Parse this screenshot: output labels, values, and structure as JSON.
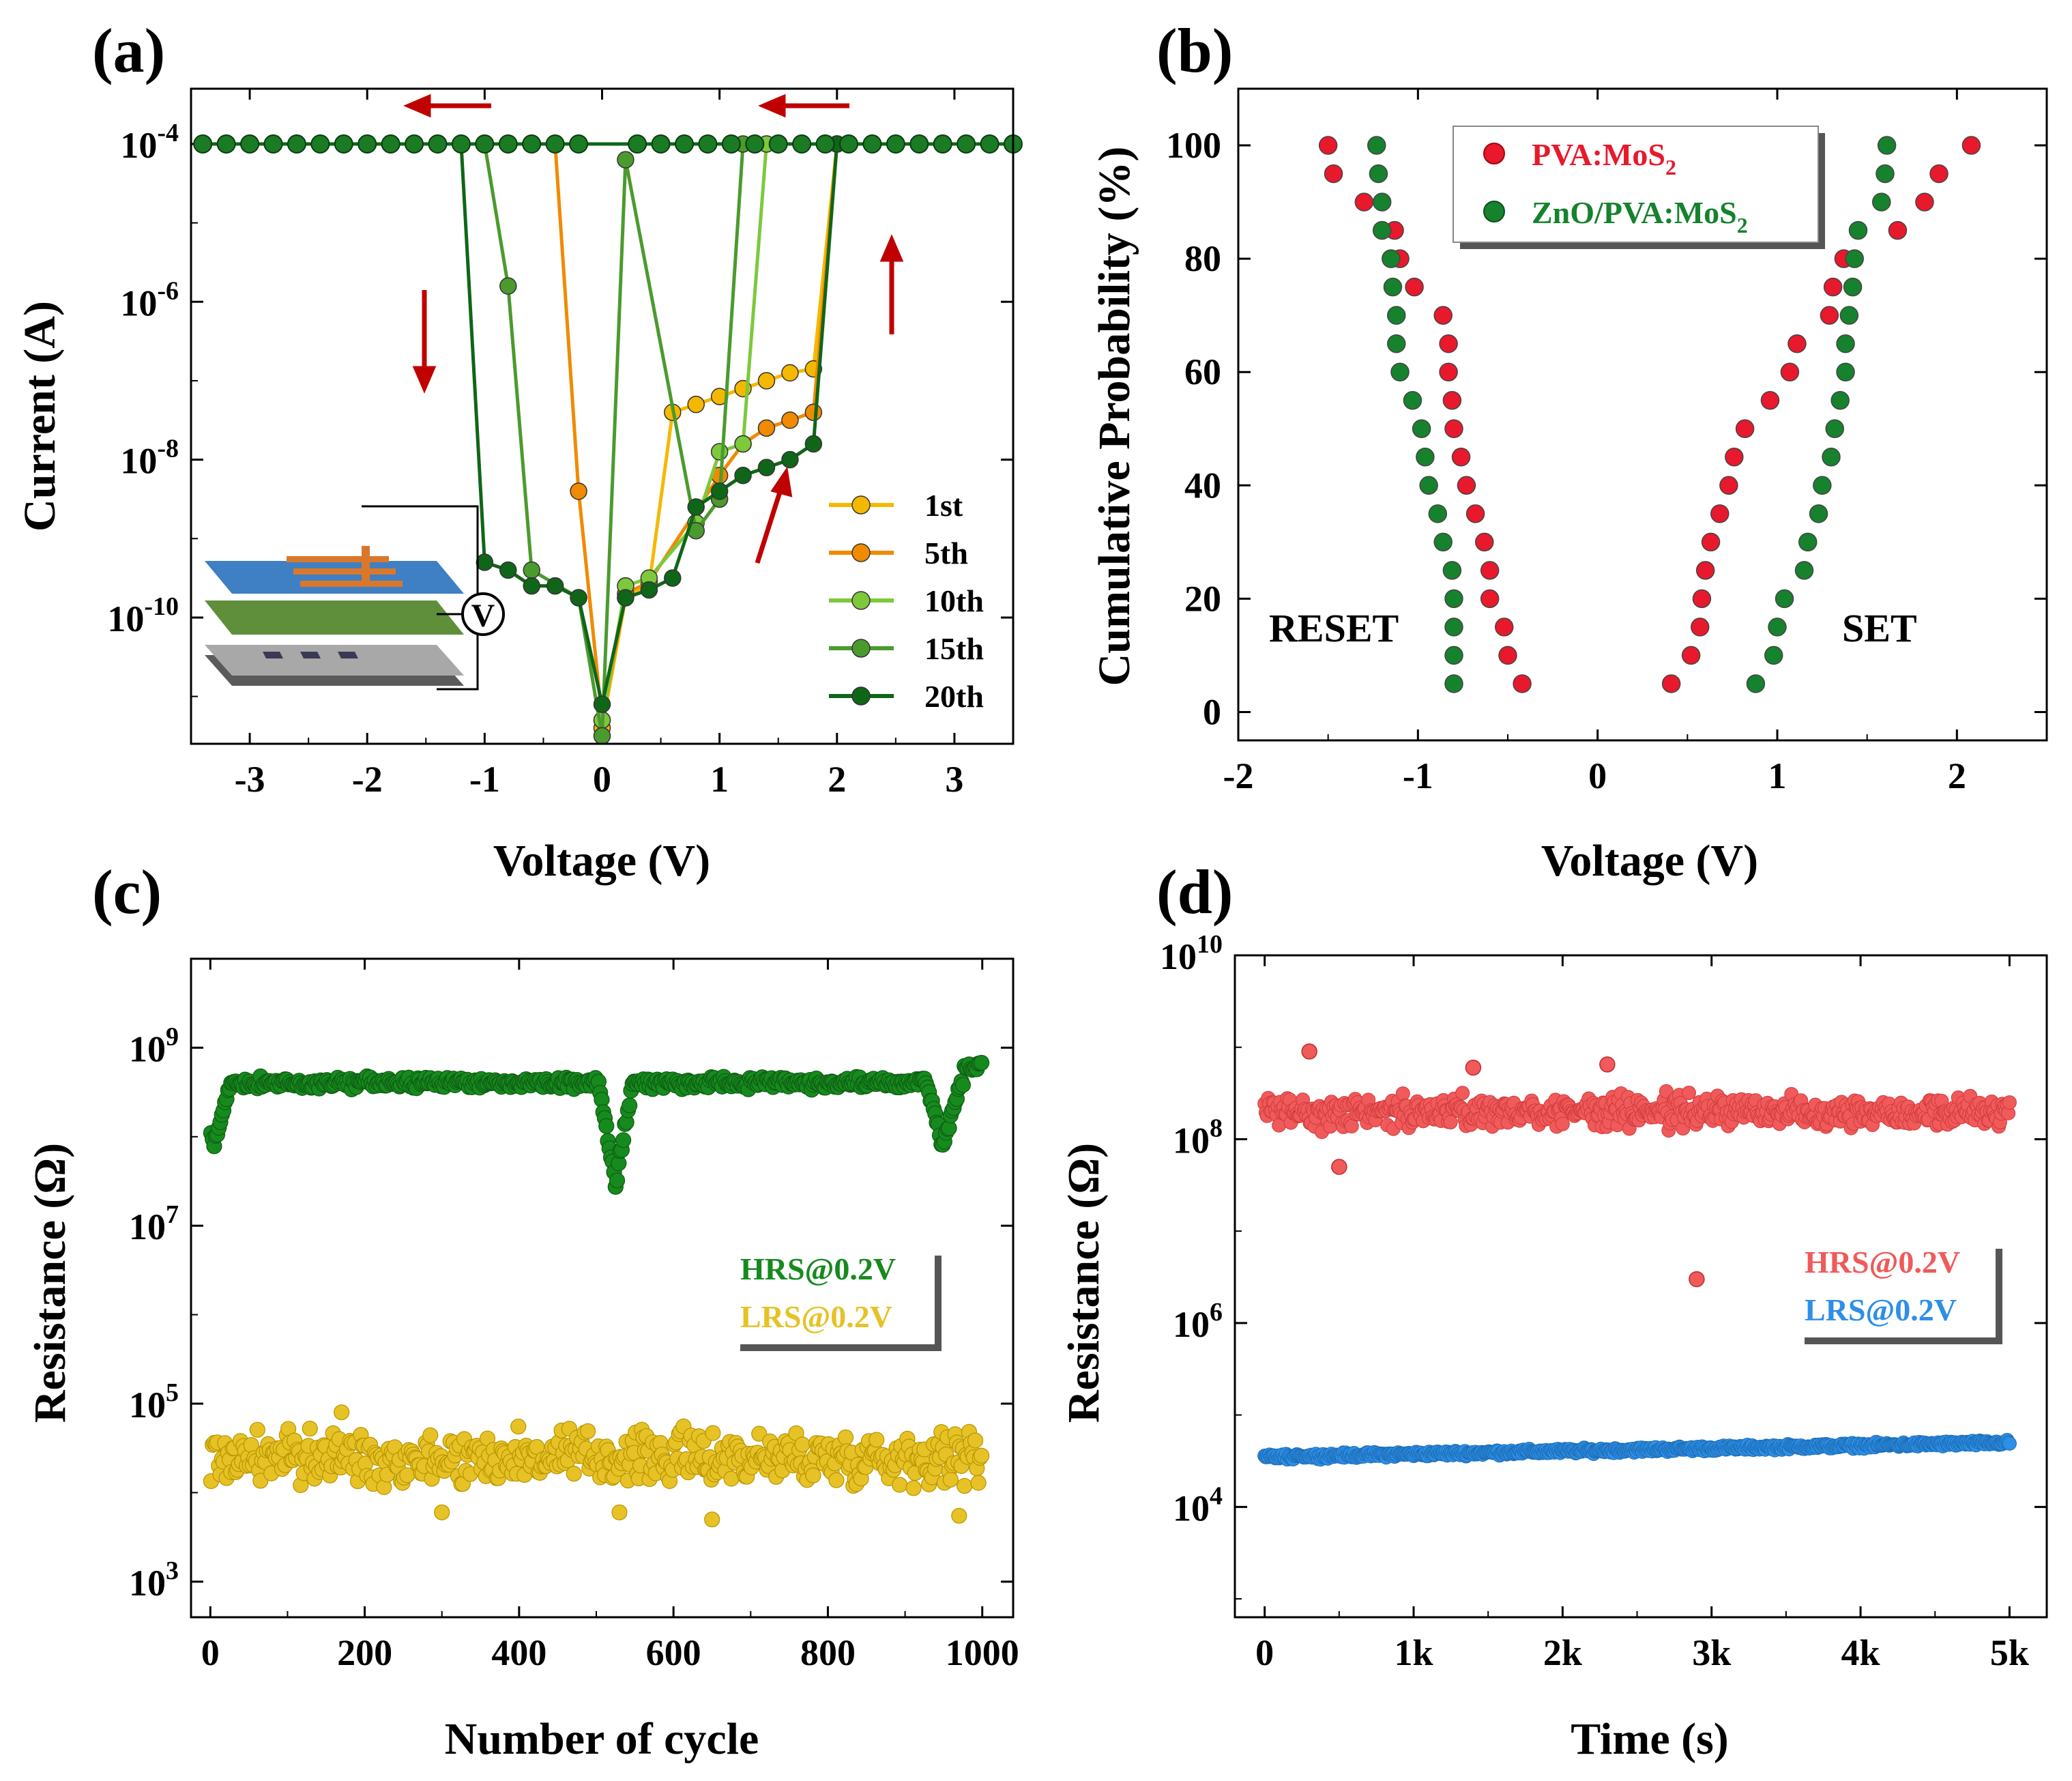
{
  "chart_data": [
    {
      "id": "a",
      "panel_label": "(a)",
      "type": "line",
      "xlabel": "Voltage (V)",
      "ylabel": "Current (A)",
      "xlim": [
        -3.5,
        3.5
      ],
      "ylim_exp": [
        -11.6,
        -3.3
      ],
      "yscale": "log",
      "xticks": [
        -3,
        -2,
        -1,
        0,
        1,
        2,
        3
      ],
      "xtick_labels": [
        "-3",
        "-2",
        "-1",
        "0",
        "1",
        "2",
        "3"
      ],
      "yticks_exp": [
        -10,
        -8,
        -6,
        -4
      ],
      "ytick_mantissa": "10",
      "ytick_exponents": [
        "-10",
        "-8",
        "-6",
        "-4"
      ],
      "legend": [
        "1st",
        "5th",
        "10th",
        "15th",
        "20th"
      ],
      "inset_meter_label": "V",
      "arrow_color": "#c00000",
      "series": [
        {
          "name": "1st",
          "color": "#f5b800",
          "points": [
            [
              0,
              -11.4
            ],
            [
              0.2,
              -9.75
            ],
            [
              0.4,
              -9.6
            ],
            [
              0.6,
              -7.4
            ],
            [
              0.8,
              -7.3
            ],
            [
              1.0,
              -7.2
            ],
            [
              1.2,
              -7.1
            ],
            [
              1.4,
              -7.0
            ],
            [
              1.6,
              -6.9
            ],
            [
              1.8,
              -6.85
            ],
            [
              2.0,
              -4.0
            ]
          ]
        },
        {
          "name": "5th",
          "color": "#f08a00",
          "points": [
            [
              -0.4,
              -4.0
            ],
            [
              -0.2,
              -8.4
            ],
            [
              0,
              -11.3
            ],
            [
              0.2,
              -9.7
            ],
            [
              0.4,
              -9.55
            ],
            [
              1.0,
              -8.2
            ],
            [
              1.2,
              -7.8
            ],
            [
              1.4,
              -7.6
            ],
            [
              1.6,
              -7.5
            ],
            [
              1.8,
              -7.4
            ],
            [
              2.0,
              -4.0
            ]
          ]
        },
        {
          "name": "10th",
          "color": "#7ec83c",
          "points": [
            [
              0,
              -11.3
            ],
            [
              0.2,
              -9.6
            ],
            [
              0.4,
              -9.5
            ],
            [
              0.8,
              -8.8
            ],
            [
              1.0,
              -7.9
            ],
            [
              1.2,
              -7.8
            ],
            [
              1.4,
              -4.0
            ]
          ]
        },
        {
          "name": "15th",
          "color": "#4b9a2e",
          "points": [
            [
              -1.0,
              -4.0
            ],
            [
              -0.8,
              -5.8
            ],
            [
              -0.6,
              -9.4
            ],
            [
              -0.2,
              -9.75
            ],
            [
              0,
              -11.5
            ],
            [
              0.2,
              -4.2
            ],
            [
              0.8,
              -8.9
            ],
            [
              1.0,
              -8.5
            ],
            [
              1.2,
              -4.0
            ]
          ]
        },
        {
          "name": "20th",
          "color": "#0f6618",
          "points": [
            [
              -1.2,
              -4.0
            ],
            [
              -1.0,
              -9.3
            ],
            [
              -0.8,
              -9.4
            ],
            [
              -0.6,
              -9.6
            ],
            [
              -0.4,
              -9.6
            ],
            [
              -0.2,
              -9.75
            ],
            [
              0,
              -11.1
            ],
            [
              0.2,
              -9.75
            ],
            [
              0.4,
              -9.65
            ],
            [
              0.6,
              -9.5
            ],
            [
              0.8,
              -8.6
            ],
            [
              1.0,
              -8.4
            ],
            [
              1.2,
              -8.2
            ],
            [
              1.4,
              -8.1
            ],
            [
              1.6,
              -8.0
            ],
            [
              1.8,
              -7.8
            ],
            [
              2.0,
              -4.0
            ]
          ]
        }
      ],
      "hold_top": {
        "value_exp": -4.0,
        "x": [
          -3.4,
          -3.2,
          -3.0,
          -2.8,
          -2.6,
          -2.4,
          -2.2,
          -2.0,
          -1.8,
          -1.6,
          -1.4,
          -1.2,
          -1.0,
          -0.8,
          -0.6,
          -0.4,
          -0.2,
          0.3,
          0.5,
          0.7,
          0.9,
          1.1,
          1.3,
          1.5,
          1.7,
          1.9,
          2.1,
          2.3,
          2.5,
          2.7,
          2.9,
          3.1,
          3.3,
          3.5
        ]
      }
    },
    {
      "id": "b",
      "panel_label": "(b)",
      "type": "scatter",
      "xlabel": "Voltage (V)",
      "ylabel": "Cumulative Probability (%)",
      "xlim": [
        -2,
        2.5
      ],
      "ylim": [
        -5,
        110
      ],
      "xticks": [
        -2,
        -1,
        0,
        1,
        2
      ],
      "xtick_labels": [
        "-2",
        "-1",
        "0",
        "1",
        "2"
      ],
      "yticks": [
        0,
        20,
        40,
        60,
        80,
        100
      ],
      "ytick_labels": [
        "0",
        "20",
        "40",
        "60",
        "80",
        "100"
      ],
      "annotations": [
        "RESET",
        "SET"
      ],
      "legend": [
        "PVA:MoS",
        "ZnO/PVA:MoS"
      ],
      "legend_subscript": "2",
      "probability": [
        5,
        10,
        15,
        20,
        25,
        30,
        35,
        40,
        45,
        50,
        55,
        60,
        65,
        70,
        75,
        80,
        85,
        90,
        95,
        100
      ],
      "series": [
        {
          "name": "PVA:MoS2 RESET",
          "color": "#e8192c",
          "x": [
            -0.42,
            -0.5,
            -0.52,
            -0.6,
            -0.6,
            -0.63,
            -0.68,
            -0.73,
            -0.76,
            -0.8,
            -0.81,
            -0.83,
            -0.83,
            -0.86,
            -1.02,
            -1.1,
            -1.13,
            -1.3,
            -1.47,
            -1.5
          ]
        },
        {
          "name": "PVA:MoS2 SET",
          "color": "#e8192c",
          "x": [
            0.41,
            0.52,
            0.57,
            0.58,
            0.6,
            0.63,
            0.68,
            0.73,
            0.76,
            0.82,
            0.96,
            1.07,
            1.11,
            1.29,
            1.31,
            1.37,
            1.67,
            1.82,
            1.9,
            2.08
          ]
        },
        {
          "name": "ZnO/PVA:MoS2 RESET",
          "color": "#16822d",
          "x": [
            -0.8,
            -0.8,
            -0.8,
            -0.8,
            -0.81,
            -0.86,
            -0.89,
            -0.94,
            -0.96,
            -0.98,
            -1.03,
            -1.1,
            -1.12,
            -1.12,
            -1.14,
            -1.15,
            -1.2,
            -1.2,
            -1.22,
            -1.23
          ]
        },
        {
          "name": "ZnO/PVA:MoS2 SET",
          "color": "#16822d",
          "x": [
            0.88,
            0.98,
            1.0,
            1.04,
            1.15,
            1.17,
            1.23,
            1.25,
            1.3,
            1.32,
            1.35,
            1.38,
            1.38,
            1.4,
            1.42,
            1.43,
            1.45,
            1.58,
            1.6,
            1.61
          ]
        }
      ]
    },
    {
      "id": "c",
      "panel_label": "(c)",
      "type": "scatter",
      "xlabel": "Number of cycle",
      "ylabel": "Resistance (Ω)",
      "xlim": [
        -25,
        1040
      ],
      "ylim_exp": [
        2.6,
        10.0
      ],
      "yscale": "log",
      "xticks": [
        0,
        200,
        400,
        600,
        800,
        1000
      ],
      "xtick_labels": [
        "0",
        "200",
        "400",
        "600",
        "800",
        "1000"
      ],
      "yticks_exp": [
        3,
        5,
        7,
        9
      ],
      "ytick_mantissa": "10",
      "ytick_exponents": [
        "3",
        "5",
        "7",
        "9"
      ],
      "legend": [
        "HRS@0.2V",
        "LRS@0.2V"
      ],
      "series": [
        {
          "name": "HRS@0.2V",
          "color": "#178a1e",
          "cycles": 1000,
          "typical_ohm": 400000000.0,
          "dips": [
            {
              "cycle": 5,
              "min_ohm": 80000000.0
            },
            {
              "cycle": 525,
              "min_ohm": 30000000.0
            },
            {
              "cycle": 950,
              "min_ohm": 80000000.0
            }
          ],
          "end_ohm": 600000000.0
        },
        {
          "name": "LRS@0.2V",
          "color": "#e6c226",
          "cycles": 1000,
          "typical_ohm": 25000.0,
          "range_ohm": [
            8000.0,
            70000.0
          ],
          "outliers": [
            [
              170,
              80000.0
            ],
            [
              300,
              6000.0
            ],
            [
              530,
              6000.0
            ],
            [
              650,
              5000.0
            ],
            [
              970,
              5500.0
            ]
          ]
        }
      ]
    },
    {
      "id": "d",
      "panel_label": "(d)",
      "type": "scatter",
      "xlabel": "Time (s)",
      "ylabel": "Resistance (Ω)",
      "xlim": [
        -200,
        5250
      ],
      "ylim_exp": [
        2.8,
        10.0
      ],
      "yscale": "log",
      "xticks": [
        0,
        1000,
        2000,
        3000,
        4000,
        5000
      ],
      "xtick_labels": [
        "0",
        "1k",
        "2k",
        "3k",
        "4k",
        "5k"
      ],
      "yticks_exp": [
        4,
        6,
        8,
        10
      ],
      "ytick_mantissa": "10",
      "ytick_exponents": [
        "4",
        "6",
        "8",
        "10"
      ],
      "legend": [
        "HRS@0.2V",
        "LRS@0.2V"
      ],
      "series": [
        {
          "name": "HRS@0.2V",
          "color": "#f05a5a",
          "duration_s": 5000,
          "typical_ohm": 200000000.0,
          "range_ohm": [
            110000000.0,
            400000000.0
          ],
          "outliers": [
            [
              300,
              900000000.0
            ],
            [
              500,
              50000000.0
            ],
            [
              1400,
              600000000.0
            ],
            [
              2300,
              650000000.0
            ],
            [
              2900,
              3000000.0
            ]
          ]
        },
        {
          "name": "LRS@0.2V",
          "color": "#2e8fe6",
          "duration_s": 5000,
          "start_ohm": 35000.0,
          "end_ohm": 50000.0,
          "range_ohm": [
            32000.0,
            56000.0
          ]
        }
      ]
    }
  ]
}
